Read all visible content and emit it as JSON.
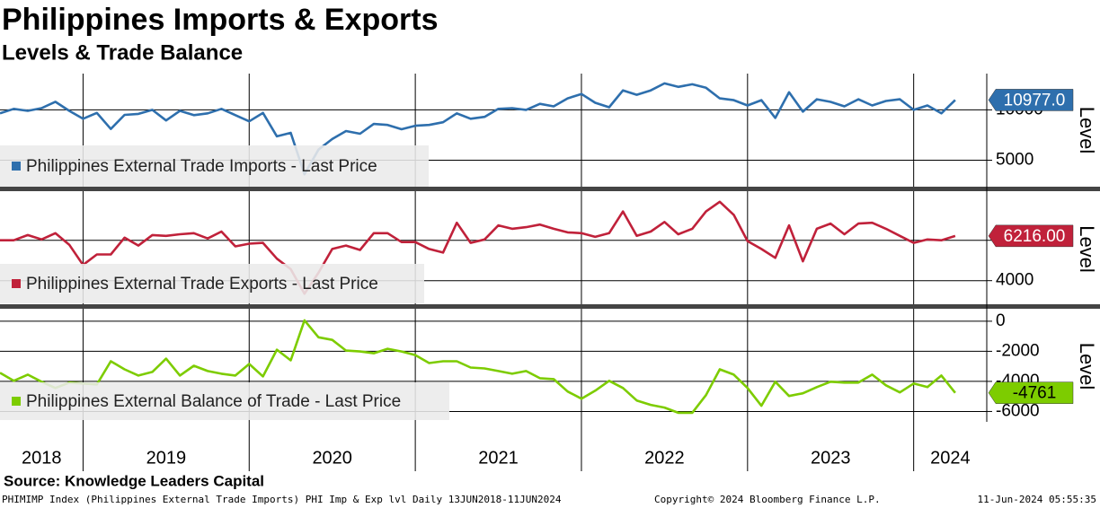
{
  "header": {
    "title": "Philippines Imports & Exports",
    "subtitle": "Levels & Trade Balance"
  },
  "chart_data": [
    {
      "type": "line",
      "ylabel": "Level",
      "grid": true,
      "xlim": [
        2018.5,
        2024.44
      ],
      "ylim": [
        2370,
        13600
      ],
      "yticks": [
        5000,
        10000
      ],
      "x": [
        2018.5,
        2018.583,
        2018.667,
        2018.75,
        2018.833,
        2018.917,
        2019,
        2019.083,
        2019.167,
        2019.25,
        2019.333,
        2019.417,
        2019.5,
        2019.583,
        2019.667,
        2019.75,
        2019.833,
        2019.917,
        2020,
        2020.083,
        2020.167,
        2020.25,
        2020.333,
        2020.417,
        2020.5,
        2020.583,
        2020.667,
        2020.75,
        2020.833,
        2020.917,
        2021,
        2021.083,
        2021.167,
        2021.25,
        2021.333,
        2021.417,
        2021.5,
        2021.583,
        2021.667,
        2021.75,
        2021.833,
        2021.917,
        2022,
        2022.083,
        2022.167,
        2022.25,
        2022.333,
        2022.417,
        2022.5,
        2022.583,
        2022.667,
        2022.75,
        2022.833,
        2022.917,
        2023,
        2023.083,
        2023.167,
        2023.25,
        2023.333,
        2023.417,
        2023.5,
        2023.583,
        2023.667,
        2023.75,
        2023.833,
        2023.917,
        2024,
        2024.083,
        2024.167,
        2024.25
      ],
      "series": [
        {
          "name": "Philippines External Trade Imports - Last Price",
          "color": "#2e6fad",
          "last_value_label": "10977.0",
          "values": [
            9650,
            10100,
            9900,
            10170,
            10800,
            9900,
            9120,
            9700,
            8100,
            9500,
            9600,
            10000,
            8950,
            9900,
            9470,
            9650,
            10100,
            9470,
            8860,
            9700,
            7370,
            7720,
            3600,
            6050,
            7100,
            7900,
            7630,
            8600,
            8500,
            8070,
            8420,
            8500,
            8770,
            9650,
            9120,
            9300,
            10100,
            10170,
            10000,
            10600,
            10350,
            11140,
            11580,
            10700,
            10260,
            11930,
            11500,
            11930,
            12630,
            12280,
            12540,
            12190,
            11140,
            10960,
            10440,
            10960,
            9200,
            11750,
            9820,
            11050,
            10790,
            10350,
            11050,
            10440,
            10880,
            11050,
            10000,
            10440,
            9650,
            10977
          ]
        }
      ]
    },
    {
      "type": "line",
      "ylabel": "Level",
      "grid": true,
      "xlim": [
        2018.5,
        2024.44
      ],
      "ylim": [
        2830,
        8300
      ],
      "yticks": [
        4000,
        6000
      ],
      "x": [
        2018.5,
        2018.583,
        2018.667,
        2018.75,
        2018.833,
        2018.917,
        2019,
        2019.083,
        2019.167,
        2019.25,
        2019.333,
        2019.417,
        2019.5,
        2019.583,
        2019.667,
        2019.75,
        2019.833,
        2019.917,
        2020,
        2020.083,
        2020.167,
        2020.25,
        2020.333,
        2020.417,
        2020.5,
        2020.583,
        2020.667,
        2020.75,
        2020.833,
        2020.917,
        2021,
        2021.083,
        2021.167,
        2021.25,
        2021.333,
        2021.417,
        2021.5,
        2021.583,
        2021.667,
        2021.75,
        2021.833,
        2021.917,
        2022,
        2022.083,
        2022.167,
        2022.25,
        2022.333,
        2022.417,
        2022.5,
        2022.583,
        2022.667,
        2022.75,
        2022.833,
        2022.917,
        2023,
        2023.083,
        2023.167,
        2023.25,
        2023.333,
        2023.417,
        2023.5,
        2023.583,
        2023.667,
        2023.75,
        2023.833,
        2023.917,
        2024,
        2024.083,
        2024.167,
        2024.25
      ],
      "series": [
        {
          "name": "Philippines External Trade Exports - Last Price",
          "color": "#c0213a",
          "last_value_label": "6216.00",
          "values": [
            6000,
            6000,
            6260,
            6040,
            6350,
            5780,
            4780,
            5300,
            5300,
            6130,
            5740,
            6260,
            6220,
            6300,
            6350,
            6090,
            6430,
            5700,
            5830,
            5870,
            5090,
            4570,
            3350,
            4390,
            5570,
            5740,
            5520,
            6350,
            6350,
            5910,
            5910,
            5570,
            5390,
            6870,
            5870,
            6040,
            6740,
            6570,
            6650,
            6780,
            6570,
            6390,
            6350,
            6170,
            6350,
            7430,
            6220,
            6430,
            6910,
            6300,
            6570,
            7430,
            7910,
            7260,
            5960,
            5570,
            5130,
            6740,
            4960,
            6570,
            6830,
            6300,
            6830,
            6870,
            6570,
            6220,
            5870,
            6040,
            6000,
            6216
          ]
        }
      ]
    },
    {
      "type": "line",
      "ylabel": "Level",
      "grid": true,
      "xlim": [
        2018.5,
        2024.44
      ],
      "ylim": [
        -6690,
        710
      ],
      "yticks": [
        0,
        -2000,
        -4000,
        -6000
      ],
      "xticks": [
        {
          "value": 2018,
          "label": "2018"
        },
        {
          "value": 2019,
          "label": "2019"
        },
        {
          "value": 2020,
          "label": "2020"
        },
        {
          "value": 2021,
          "label": "2021"
        },
        {
          "value": 2022,
          "label": "2022"
        },
        {
          "value": 2023,
          "label": "2023"
        },
        {
          "value": 2024,
          "label": "2024"
        }
      ],
      "x": [
        2018.5,
        2018.583,
        2018.667,
        2018.75,
        2018.833,
        2018.917,
        2019,
        2019.083,
        2019.167,
        2019.25,
        2019.333,
        2019.417,
        2019.5,
        2019.583,
        2019.667,
        2019.75,
        2019.833,
        2019.917,
        2020,
        2020.083,
        2020.167,
        2020.25,
        2020.333,
        2020.417,
        2020.5,
        2020.583,
        2020.667,
        2020.75,
        2020.833,
        2020.917,
        2021,
        2021.083,
        2021.167,
        2021.25,
        2021.333,
        2021.417,
        2021.5,
        2021.583,
        2021.667,
        2021.75,
        2021.833,
        2021.917,
        2022,
        2022.083,
        2022.167,
        2022.25,
        2022.333,
        2022.417,
        2022.5,
        2022.583,
        2022.667,
        2022.75,
        2022.833,
        2022.917,
        2023,
        2023.083,
        2023.167,
        2023.25,
        2023.333,
        2023.417,
        2023.5,
        2023.583,
        2023.667,
        2023.75,
        2023.833,
        2023.917,
        2024,
        2024.083,
        2024.167,
        2024.25
      ],
      "series": [
        {
          "name": "Philippines External Balance of Trade - Last Price",
          "color": "#7dcc00",
          "last_value_label": "-4761",
          "values": [
            -3430,
            -3960,
            -3550,
            -4020,
            -4440,
            -4080,
            -4140,
            -4200,
            -2660,
            -3200,
            -3610,
            -3370,
            -2490,
            -3610,
            -2960,
            -3310,
            -3490,
            -3610,
            -2840,
            -3670,
            -1890,
            -2600,
            60,
            -1070,
            -1240,
            -1950,
            -2010,
            -2130,
            -1830,
            -2010,
            -2250,
            -2780,
            -2660,
            -2660,
            -3080,
            -3140,
            -3310,
            -3490,
            -3310,
            -3790,
            -3850,
            -4670,
            -5150,
            -4620,
            -3960,
            -4440,
            -5270,
            -5560,
            -5740,
            -6090,
            -6090,
            -4910,
            -3200,
            -3550,
            -4440,
            -5620,
            -4020,
            -4970,
            -4790,
            -4380,
            -4020,
            -4080,
            -4080,
            -3550,
            -4260,
            -4730,
            -4140,
            -4380,
            -3610,
            -4761
          ]
        }
      ]
    }
  ],
  "footer": {
    "source": "Source: Knowledge Leaders Capital",
    "ticker": "PHIMIMP Index (Philippines External Trade Imports) PHI Imp & Exp lvl  Daily 13JUN2018-11JUN2024",
    "copyright": "Copyright© 2024 Bloomberg Finance L.P.",
    "timestamp": "11-Jun-2024 05:55:35"
  }
}
